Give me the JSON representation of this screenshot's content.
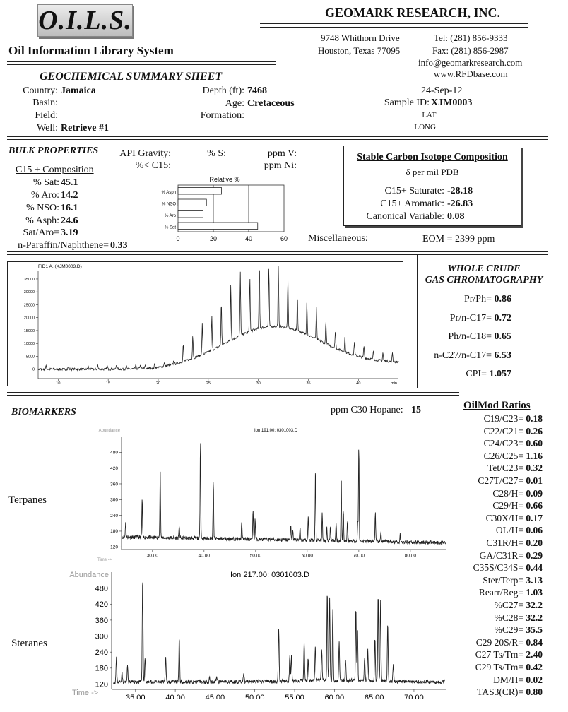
{
  "header": {
    "logo": "O.I.L.S.",
    "system_name": "Oil Information Library System",
    "company": "GEOMARK RESEARCH, INC.",
    "address_line1": "9748 Whithorn Drive",
    "address_line2": "Houston, Texas 77095",
    "tel": "Tel: (281) 856-9333",
    "fax": "Fax: (281) 856-2987",
    "email": "info@geomarkresearch.com",
    "web": "www.RFDbase.com"
  },
  "summary": {
    "title": "GEOCHEMICAL SUMMARY SHEET",
    "country_label": "Country:",
    "country": "Jamaica",
    "basin_label": "Basin:",
    "field_label": "Field:",
    "well_label": "Well:",
    "well": "Retrieve #1",
    "depth_label": "Depth (ft):",
    "depth": "7468",
    "age_label": "Age:",
    "age": "Cretaceous",
    "formation_label": "Formation:",
    "date": "24-Sep-12",
    "sample_label": "Sample ID:",
    "sample_id": "XJM0003",
    "lat_label": "LAT:",
    "long_label": "LONG:"
  },
  "bulk": {
    "title": "BULK PROPERTIES",
    "api_label": "API Gravity:",
    "pc15_label": "%< C15:",
    "s_label": "% S:",
    "v_label": "ppm V:",
    "ni_label": "ppm Ni:",
    "c15_title": "C15 + Composition",
    "sat_label": "% Sat:",
    "sat": "45.1",
    "aro_label": "% Aro:",
    "aro": "14.2",
    "nso_label": "% NSO:",
    "nso": "16.1",
    "asph_label": "% Asph:",
    "asph": "24.6",
    "satAro_label": "Sat/Aro=",
    "satAro": "3.19",
    "npn_label": "n-Paraffin/Naphthene=",
    "npn": "0.33",
    "misc_label": "Miscellaneous:",
    "eom": "EOM = 2399 ppm"
  },
  "isotope": {
    "title": "Stable Carbon Isotope Composition",
    "sub": "δ per mil PDB",
    "sat_label": "C15+ Saturate:",
    "sat": "-28.18",
    "aro_label": "C15+ Aromatic:",
    "aro": "-26.83",
    "cv_label": "Canonical Variable:",
    "cv": "0.08"
  },
  "rel_chart": {
    "title": "Relative %",
    "categories": [
      "% Asph",
      "% NSO",
      "% Aro",
      "% Sat"
    ],
    "ticks": [
      "0",
      "20",
      "40",
      "60"
    ]
  },
  "chart_data": [
    {
      "type": "bar",
      "title": "Relative %",
      "categories": [
        "% Asph",
        "% NSO",
        "% Aro",
        "% Sat"
      ],
      "values": [
        24.6,
        16.1,
        14.2,
        45.1
      ],
      "xlim": [
        0,
        60
      ],
      "orientation": "horizontal"
    },
    {
      "type": "line",
      "title": "FID1 A, (XJM0003.D)",
      "xlabel": "min",
      "x_ticks": [
        "10",
        "15",
        "20",
        "25",
        "30",
        "35",
        "40"
      ],
      "y_ticks": [
        "35000",
        "30000",
        "25000",
        "20000",
        "15000",
        "10000",
        "5000",
        "0"
      ],
      "xlim": [
        8,
        44
      ],
      "ylim": [
        -2000,
        38000
      ]
    },
    {
      "type": "line",
      "title": "Ion 191.00: 0301003.D",
      "ylabel": "Abundance",
      "xlabel": "Time ->",
      "x_ticks": [
        "30.00",
        "40.00",
        "50.00",
        "60.00",
        "70.00",
        "80.00"
      ],
      "y_ticks": [
        "480",
        "420",
        "360",
        "300",
        "240",
        "180",
        "120"
      ],
      "xlim": [
        24,
        87
      ],
      "ylim": [
        110,
        540
      ]
    },
    {
      "type": "line",
      "title": "Ion 217.00: 0301003.D",
      "ylabel": "Abundance",
      "xlabel": "Time ->",
      "x_ticks": [
        "35.00",
        "40.00",
        "45.00",
        "50.00",
        "55.00",
        "60.00",
        "65.00",
        "70.00"
      ],
      "y_ticks": [
        "480",
        "420",
        "360",
        "300",
        "240",
        "180",
        "120"
      ],
      "xlim": [
        32,
        74
      ],
      "ylim": [
        100,
        540
      ]
    }
  ],
  "gc": {
    "title1": "WHOLE CRUDE",
    "title2": "GAS CHROMATOGRAPHY",
    "ratios": [
      {
        "label": "Pr/Ph=",
        "value": "0.86"
      },
      {
        "label": "Pr/n-C17=",
        "value": "0.72"
      },
      {
        "label": "Ph/n-C18=",
        "value": "0.65"
      },
      {
        "label": "n-C27/n-C17=",
        "value": "6.53"
      },
      {
        "label": "CPI=",
        "value": "1.057"
      }
    ],
    "fid_title": "FID1 A, (XJM0003.D)",
    "x_ticks": [
      "10",
      "15",
      "20",
      "25",
      "30",
      "35",
      "40"
    ],
    "x_unit": "min",
    "y_ticks": [
      "35000",
      "30000",
      "25000",
      "20000",
      "15000",
      "10000",
      "5000",
      "0"
    ]
  },
  "biomarkers": {
    "title": "BIOMARKERS",
    "hopane_label": "ppm C30 Hopane:",
    "hopane": "15",
    "terpanes": "Terpanes",
    "steranes": "Steranes",
    "terp_title": "Ion 191.00: 0301003.D",
    "ster_title": "Ion 217.00: 0301003.D",
    "abundance": "Abundance",
    "time": "Time ->",
    "terp_x": [
      "30.00",
      "40.00",
      "50.00",
      "60.00",
      "70.00",
      "80.00"
    ],
    "ster_x": [
      "35.00",
      "40.00",
      "45.00",
      "50.00",
      "55.00",
      "60.00",
      "65.00",
      "70.00"
    ],
    "y_ticks": [
      "480",
      "420",
      "360",
      "300",
      "240",
      "180",
      "120"
    ]
  },
  "oilmod": {
    "title": "OilMod Ratios",
    "ratios": [
      {
        "label": "C19/C23=",
        "value": "0.18"
      },
      {
        "label": "C22/C21=",
        "value": "0.26"
      },
      {
        "label": "C24/C23=",
        "value": "0.60"
      },
      {
        "label": "C26/C25=",
        "value": "1.16"
      },
      {
        "label": "Tet/C23=",
        "value": "0.32"
      },
      {
        "label": "C27T/C27=",
        "value": "0.01"
      },
      {
        "label": "C28/H=",
        "value": "0.09"
      },
      {
        "label": "C29/H=",
        "value": "0.66"
      },
      {
        "label": "C30X/H=",
        "value": "0.17"
      },
      {
        "label": "OL/H=",
        "value": "0.06"
      },
      {
        "label": "C31R/H=",
        "value": "0.20"
      },
      {
        "label": "GA/C31R=",
        "value": "0.29"
      },
      {
        "label": "C35S/C34S=",
        "value": "0.44"
      },
      {
        "label": "Ster/Terp=",
        "value": "3.13"
      },
      {
        "label": "Rearr/Reg=",
        "value": "1.03"
      },
      {
        "label": "%C27=",
        "value": "32.2"
      },
      {
        "label": "%C28=",
        "value": "32.2"
      },
      {
        "label": "%C29=",
        "value": "35.5"
      },
      {
        "label": "C29 20S/R=",
        "value": "0.84"
      },
      {
        "label": "C27 Ts/Tm=",
        "value": "2.40"
      },
      {
        "label": "C29 Ts/Tm=",
        "value": "0.42"
      },
      {
        "label": "DM/H=",
        "value": "0.02"
      },
      {
        "label": "TAS3(CR)=",
        "value": "0.80"
      }
    ]
  }
}
